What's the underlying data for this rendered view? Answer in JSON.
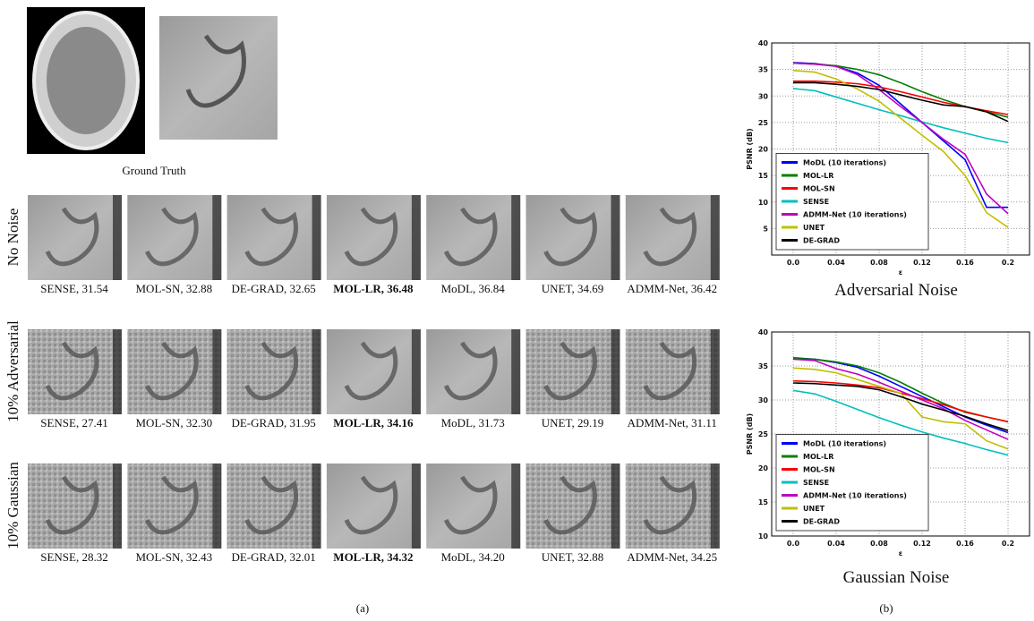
{
  "panel_a": {
    "ground_truth_label": "Ground Truth",
    "highlight": 3,
    "rows": [
      {
        "label": "No Noise",
        "captions": [
          "SENSE, 31.54",
          "MOL-SN, 32.88",
          "DE-GRAD, 32.65",
          "MOL-LR, 36.48",
          "MoDL, 36.84",
          "UNET, 34.69",
          "ADMM-Net, 36.42"
        ]
      },
      {
        "label": "10% Adversarial",
        "captions": [
          "SENSE, 27.41",
          "MOL-SN, 32.30",
          "DE-GRAD, 31.95",
          "MOL-LR, 34.16",
          "MoDL, 31.73",
          "UNET, 29.19",
          "ADMM-Net, 31.11"
        ]
      },
      {
        "label": "10% Gaussian",
        "captions": [
          "SENSE, 28.32",
          "MOL-SN, 32.43",
          "DE-GRAD, 32.01",
          "MOL-LR, 34.32",
          "MoDL, 34.20",
          "UNET, 32.88",
          "ADMM-Net, 34.25"
        ]
      }
    ],
    "sublabel": "(a)"
  },
  "panel_b_sublabel": "(b)",
  "chart_data": [
    {
      "type": "line",
      "title": "Adversarial Noise",
      "x_label": "ε",
      "y_label": "PSNR (dB)",
      "x": [
        0,
        0.02,
        0.04,
        0.06,
        0.08,
        0.1,
        0.12,
        0.14,
        0.16,
        0.18,
        0.2
      ],
      "xlim": [
        -0.02,
        0.22
      ],
      "ylim": [
        0,
        40
      ],
      "xticks": [
        {
          "value": 0,
          "label": "0.0"
        },
        0.04,
        0.08,
        0.12,
        0.16,
        0.2
      ],
      "yticks": [
        5,
        10,
        15,
        20,
        25,
        30,
        35,
        40
      ],
      "grid": true,
      "legend": "lower-left",
      "series": [
        {
          "name": "MoDL (10 iterations)",
          "color": "#0000ff",
          "values": [
            36.3,
            36.1,
            35.6,
            34.3,
            32.0,
            28.5,
            25.0,
            21.5,
            18.0,
            9.0,
            9.0
          ]
        },
        {
          "name": "MOL-LR",
          "color": "#008000",
          "values": [
            36.2,
            36.0,
            35.7,
            35.0,
            34.0,
            32.5,
            30.8,
            29.3,
            28.0,
            27.0,
            26.0
          ]
        },
        {
          "name": "MOL-SN",
          "color": "#ff0000",
          "values": [
            32.8,
            32.8,
            32.6,
            32.3,
            31.7,
            30.8,
            29.8,
            28.8,
            28.0,
            27.2,
            26.5
          ]
        },
        {
          "name": "SENSE",
          "color": "#00bfbf",
          "values": [
            31.4,
            31.0,
            29.8,
            28.6,
            27.4,
            26.3,
            25.1,
            24.0,
            23.0,
            22.0,
            21.2
          ]
        },
        {
          "name": "ADMM-Net (10 iterations)",
          "color": "#bf00bf",
          "values": [
            36.2,
            36.0,
            35.6,
            34.0,
            31.2,
            28.0,
            25.0,
            21.8,
            19.0,
            11.5,
            7.8
          ]
        },
        {
          "name": "UNET",
          "color": "#bfbf00",
          "values": [
            34.8,
            34.5,
            33.2,
            31.3,
            29.0,
            25.8,
            22.6,
            19.5,
            15.0,
            8.0,
            5.2
          ]
        },
        {
          "name": "DE-GRAD",
          "color": "#000000",
          "values": [
            32.5,
            32.5,
            32.2,
            31.8,
            31.2,
            30.2,
            29.2,
            28.3,
            28.0,
            27.0,
            25.2
          ]
        }
      ]
    },
    {
      "type": "line",
      "title": "Gaussian Noise",
      "x_label": "ε",
      "y_label": "PSNR (dB)",
      "x": [
        0,
        0.02,
        0.04,
        0.06,
        0.08,
        0.1,
        0.12,
        0.14,
        0.16,
        0.18,
        0.2
      ],
      "xlim": [
        -0.02,
        0.22
      ],
      "ylim": [
        10,
        40
      ],
      "xticks": [
        {
          "value": 0,
          "label": "0.0"
        },
        0.04,
        0.08,
        0.12,
        0.16,
        0.2
      ],
      "yticks": [
        10,
        15,
        20,
        25,
        30,
        35,
        40
      ],
      "grid": true,
      "legend": "lower-left",
      "series": [
        {
          "name": "MoDL (10 iterations)",
          "color": "#0000ff",
          "values": [
            36.2,
            36.0,
            35.5,
            34.8,
            33.5,
            32.0,
            30.5,
            29.0,
            27.5,
            26.3,
            25.2
          ]
        },
        {
          "name": "MOL-LR",
          "color": "#008000",
          "values": [
            36.1,
            36.0,
            35.6,
            35.0,
            34.0,
            32.6,
            31.0,
            29.5,
            28.2,
            27.5,
            26.8
          ]
        },
        {
          "name": "MOL-SN",
          "color": "#ff0000",
          "values": [
            32.8,
            32.7,
            32.5,
            32.2,
            31.8,
            31.0,
            30.2,
            29.3,
            28.3,
            27.5,
            26.8
          ]
        },
        {
          "name": "SENSE",
          "color": "#00bfbf",
          "values": [
            31.4,
            30.9,
            29.8,
            28.6,
            27.4,
            26.3,
            25.3,
            24.4,
            23.6,
            22.7,
            21.9
          ]
        },
        {
          "name": "ADMM-Net (10 iterations)",
          "color": "#bf00bf",
          "values": [
            36.0,
            35.8,
            34.6,
            33.8,
            32.6,
            31.3,
            30.0,
            28.7,
            27.0,
            25.6,
            24.2
          ]
        },
        {
          "name": "UNET",
          "color": "#bfbf00",
          "values": [
            34.7,
            34.5,
            34.0,
            33.0,
            32.0,
            31.0,
            27.5,
            26.8,
            26.5,
            24.0,
            22.8
          ]
        },
        {
          "name": "DE-GRAD",
          "color": "#000000",
          "values": [
            32.5,
            32.4,
            32.2,
            32.0,
            31.5,
            30.5,
            29.4,
            28.5,
            27.6,
            26.5,
            25.5
          ]
        }
      ]
    }
  ]
}
